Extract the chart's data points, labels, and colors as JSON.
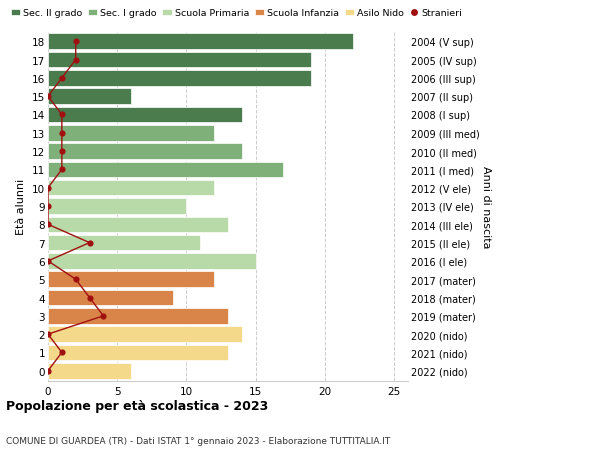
{
  "ages": [
    18,
    17,
    16,
    15,
    14,
    13,
    12,
    11,
    10,
    9,
    8,
    7,
    6,
    5,
    4,
    3,
    2,
    1,
    0
  ],
  "right_labels": [
    "2004 (V sup)",
    "2005 (IV sup)",
    "2006 (III sup)",
    "2007 (II sup)",
    "2008 (I sup)",
    "2009 (III med)",
    "2010 (II med)",
    "2011 (I med)",
    "2012 (V ele)",
    "2013 (IV ele)",
    "2014 (III ele)",
    "2015 (II ele)",
    "2016 (I ele)",
    "2017 (mater)",
    "2018 (mater)",
    "2019 (mater)",
    "2020 (nido)",
    "2021 (nido)",
    "2022 (nido)"
  ],
  "bar_values": [
    22,
    19,
    19,
    6,
    14,
    12,
    14,
    17,
    12,
    10,
    13,
    11,
    15,
    12,
    9,
    13,
    14,
    13,
    6
  ],
  "bar_colors": [
    "#4a7c4e",
    "#4a7c4e",
    "#4a7c4e",
    "#4a7c4e",
    "#4a7c4e",
    "#7fb07a",
    "#7fb07a",
    "#7fb07a",
    "#b8d9a8",
    "#b8d9a8",
    "#b8d9a8",
    "#b8d9a8",
    "#b8d9a8",
    "#d9854a",
    "#d9854a",
    "#d9854a",
    "#f5d98a",
    "#f5d98a",
    "#f5d98a"
  ],
  "stranieri_values": [
    2,
    2,
    1,
    0,
    1,
    1,
    1,
    1,
    0,
    0,
    0,
    3,
    0,
    2,
    3,
    4,
    0,
    1,
    0
  ],
  "legend_labels": [
    "Sec. II grado",
    "Sec. I grado",
    "Scuola Primaria",
    "Scuola Infanzia",
    "Asilo Nido",
    "Stranieri"
  ],
  "legend_colors": [
    "#4a7c4e",
    "#7fb07a",
    "#b8d9a8",
    "#d9854a",
    "#f5d98a",
    "#a01010"
  ],
  "ylabel": "Età alunni",
  "ylabel2": "Anni di nascita",
  "title": "Popolazione per età scolastica - 2023",
  "subtitle": "COMUNE DI GUARDEA (TR) - Dati ISTAT 1° gennaio 2023 - Elaborazione TUTTITALIA.IT",
  "xlim": [
    0,
    26
  ],
  "ylim_min": -0.55,
  "ylim_max": 18.55,
  "background_color": "#ffffff",
  "bar_edgecolor": "#ffffff",
  "grid_color": "#cccccc"
}
